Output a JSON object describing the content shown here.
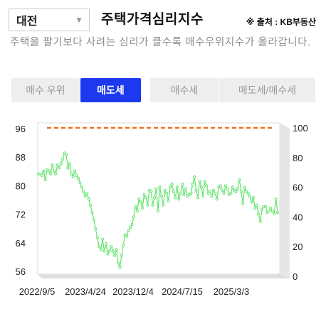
{
  "region_select": {
    "value": "대전",
    "arrow": "▼"
  },
  "title": "주택가격심리지수",
  "source": "※ 출처 : KB부동산",
  "description": "주택을 팔기보다 사려는 심리가 클수록 매수우위지수가 올라갑니다.",
  "tabs": [
    {
      "label": "매수 우위",
      "active": false
    },
    {
      "label": "매도세",
      "active": true
    },
    {
      "label": "매수세",
      "active": false
    },
    {
      "label": "매도세/매수세",
      "active": false
    }
  ],
  "colors": {
    "accent": "#1d39f0",
    "series": "#5fe36a",
    "reference_line": "#f07020"
  },
  "chart_data": {
    "type": "line",
    "title": "",
    "left_axis": {
      "ticks": [
        96,
        88,
        80,
        72,
        64,
        56
      ],
      "range": [
        56,
        96
      ]
    },
    "right_axis": {
      "ticks": [
        100,
        80,
        60,
        40,
        20,
        0
      ],
      "range": [
        0,
        100
      ]
    },
    "x_ticks": [
      "2022/9/5",
      "2023/4/24",
      "2023/12/4",
      "2024/7/15",
      "2025/3/3"
    ],
    "reference_line": {
      "value": 100,
      "axis": "right",
      "style": "dashed"
    },
    "series": [
      {
        "axis": "right",
        "values": [
          69,
          69,
          68,
          71,
          65,
          72,
          71,
          69,
          75,
          71,
          69,
          75,
          73,
          76,
          79,
          83,
          82,
          73,
          76,
          69,
          67,
          71,
          68,
          66,
          63,
          60,
          57,
          54,
          56,
          52,
          48,
          43,
          38,
          32,
          26,
          20,
          18,
          25,
          17,
          22,
          15,
          17,
          20,
          17,
          14,
          18,
          9,
          6,
          14,
          21,
          28,
          27,
          31,
          33,
          35,
          40,
          47,
          44,
          52,
          50,
          46,
          55,
          53,
          48,
          58,
          57,
          48,
          53,
          59,
          44,
          60,
          54,
          48,
          58,
          56,
          51,
          60,
          62,
          57,
          53,
          60,
          52,
          56,
          62,
          55,
          59,
          54,
          55,
          56,
          62,
          67,
          58,
          53,
          64,
          60,
          54,
          64,
          61,
          56,
          57,
          54,
          58,
          56,
          52,
          60,
          61,
          58,
          56,
          61,
          59,
          55,
          56,
          60,
          58,
          57,
          59,
          65,
          57,
          49,
          60,
          57,
          56,
          54,
          50,
          53,
          46,
          48,
          42,
          37,
          45,
          47,
          47,
          43,
          44,
          46,
          44,
          42,
          52,
          43
        ]
      }
    ]
  }
}
